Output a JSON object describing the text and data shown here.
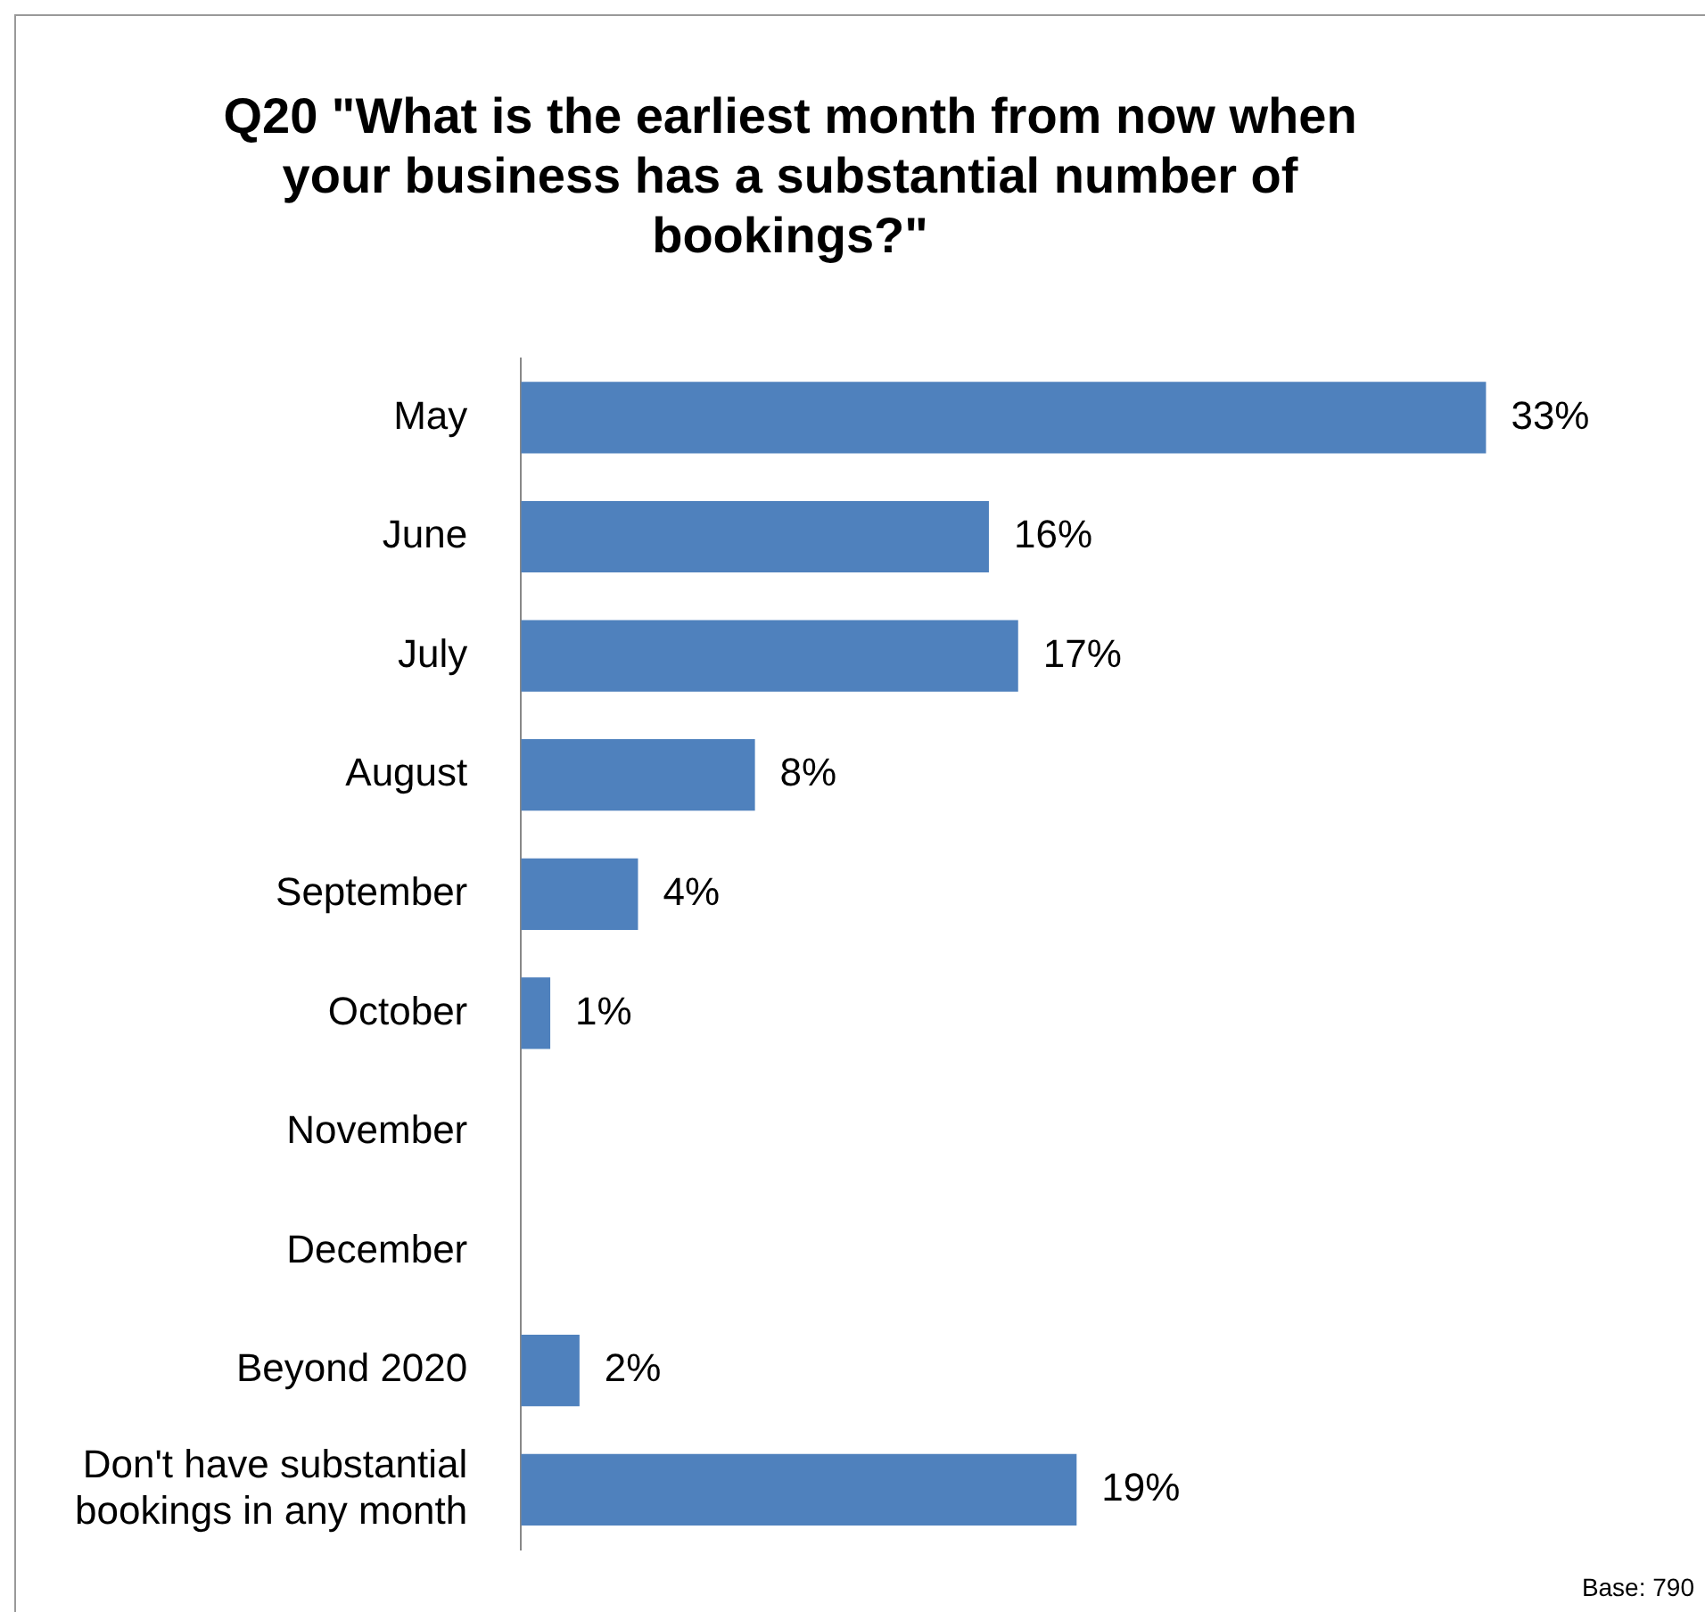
{
  "chart_data": {
    "type": "bar",
    "orientation": "horizontal",
    "title": "Q20 \"What is the earliest month from now when your business has a substantial number of bookings?\"",
    "categories": [
      "May",
      "June",
      "July",
      "August",
      "September",
      "October",
      "November",
      "December",
      "Beyond 2020",
      "Don't have substantial bookings in any month"
    ],
    "values": [
      33,
      16,
      17,
      8,
      4,
      1,
      null,
      null,
      2,
      19
    ],
    "value_labels": [
      "33%",
      "16%",
      "17%",
      "8%",
      "4%",
      "1%",
      null,
      null,
      "2%",
      "19%"
    ],
    "color": "#4f81bd",
    "annotations": [
      "Base: 790"
    ]
  }
}
